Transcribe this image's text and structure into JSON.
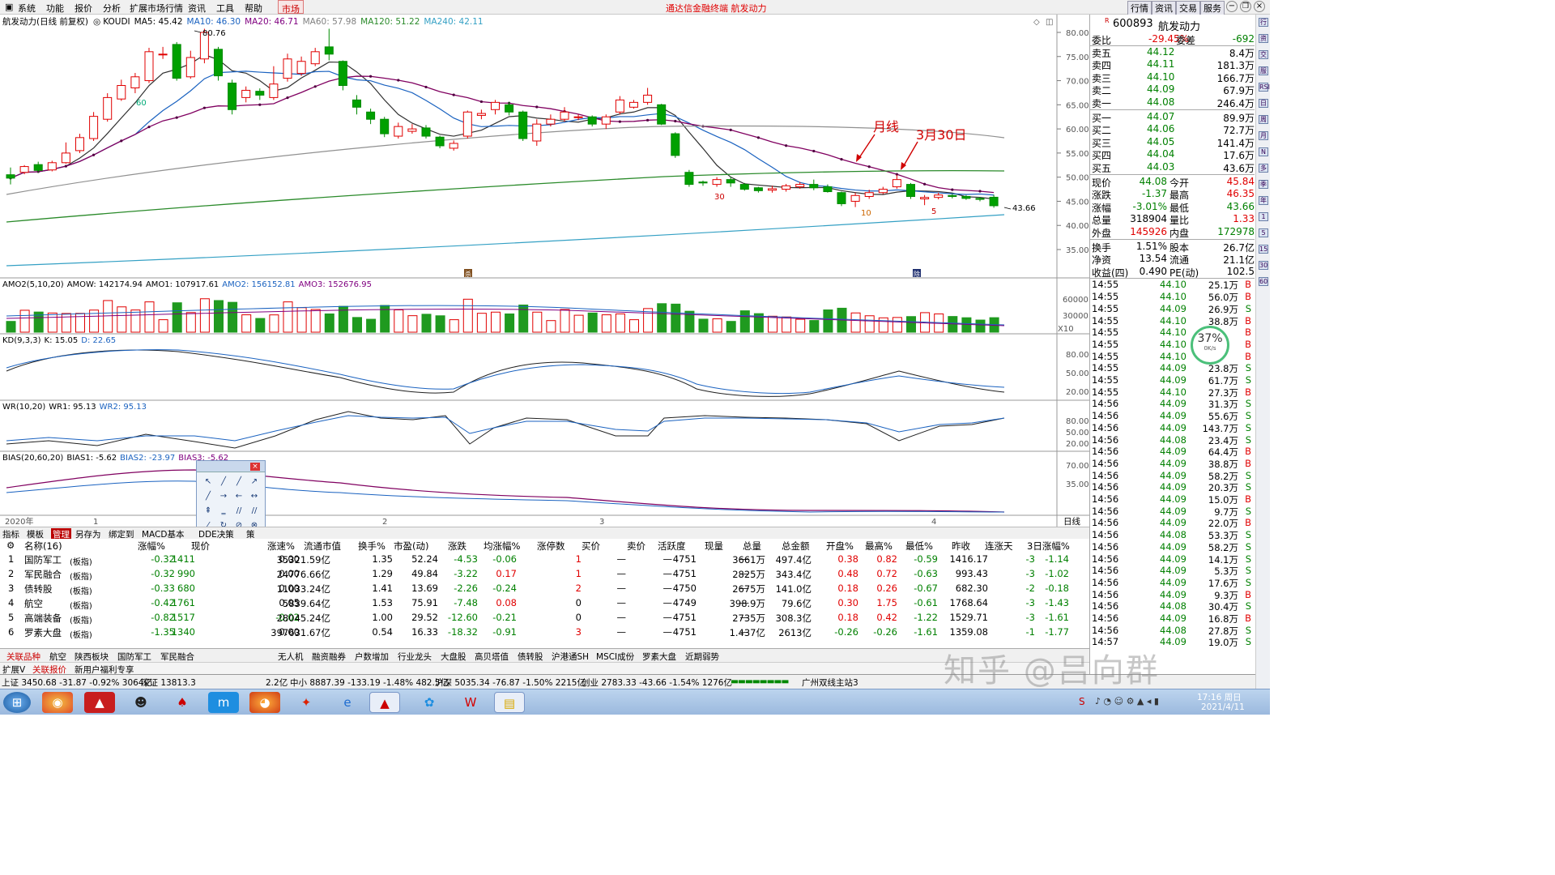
{
  "menu": {
    "items": [
      "系统",
      "功能",
      "报价",
      "分析",
      "扩展市场行情",
      "资讯",
      "工具",
      "帮助"
    ],
    "market": "市场",
    "title": "通达信金融终端  航发动力",
    "right": [
      "行情",
      "资讯",
      "交易",
      "服务"
    ]
  },
  "chart": {
    "title": "航发动力(日线 前复权)",
    "kline_label": "KOUDI",
    "ma5": "MA5: 45.42",
    "ma10": "MA10: 46.30",
    "ma20": "MA20: 46.71",
    "ma60": "MA60: 57.98",
    "ma120": "MA120: 51.22",
    "ma240": "MA240: 42.11",
    "high_mark": "80.76",
    "low_mark": "43.66",
    "ann1": "月线",
    "ann2": "3月30日",
    "yticks": [
      "80.00",
      "75.00",
      "70.00",
      "65.00",
      "60.00",
      "55.00",
      "50.00",
      "45.00",
      "40.00",
      "35.00"
    ],
    "m60": "60",
    "m30": "30",
    "m10": "10",
    "m5": "5",
    "t1": "杀",
    "t2": "除",
    "amo": {
      "label": "AMO2(5,10,20)",
      "amow": "AMOW: 142174.94",
      "amo1": "AMO1: 107917.61",
      "amo2": "AMO2: 156152.81",
      "amo3": "AMO3: 152676.95",
      "y1": "60000",
      "y2": "30000",
      "scale": "X10"
    },
    "kd": {
      "label": "KD(9,3,3)",
      "k": "K: 15.05",
      "d": "D: 22.65",
      "y": [
        "80.00",
        "50.00",
        "20.00"
      ]
    },
    "wr": {
      "label": "WR(10,20)",
      "wr1": "WR1: 95.13",
      "wr2": "WR2: 95.13",
      "y": [
        "80.00",
        "50.00",
        "20.00"
      ]
    },
    "bias": {
      "label": "BIAS(20,60,20)",
      "b1": "BIAS1: -5.62",
      "b2": "BIAS2: -23.97",
      "b3": "BIAS3: -5.62",
      "y": [
        "70.00",
        "35.00"
      ]
    },
    "xaxis": {
      "year": "2020年",
      "m1": "1",
      "m2": "2",
      "m3": "3",
      "m4": "4",
      "period": "日线"
    }
  },
  "quote": {
    "code": "600893",
    "name": "航发动力",
    "weibi_l": "委比",
    "weibi_v": "-29.45%",
    "weicha_l": "委差",
    "weicha_v": "-692",
    "asks": [
      [
        "卖五",
        "44.12",
        "8.4万"
      ],
      [
        "卖四",
        "44.11",
        "181.3万"
      ],
      [
        "卖三",
        "44.10",
        "166.7万"
      ],
      [
        "卖二",
        "44.09",
        "67.9万"
      ],
      [
        "卖一",
        "44.08",
        "246.4万"
      ]
    ],
    "bids": [
      [
        "买一",
        "44.07",
        "89.9万"
      ],
      [
        "买二",
        "44.06",
        "72.7万"
      ],
      [
        "买三",
        "44.05",
        "141.4万"
      ],
      [
        "买四",
        "44.04",
        "17.6万"
      ],
      [
        "买五",
        "44.03",
        "43.6万"
      ]
    ],
    "stats": [
      [
        "现价",
        "44.08",
        "今开",
        "45.84"
      ],
      [
        "涨跌",
        "-1.37",
        "最高",
        "46.35"
      ],
      [
        "涨幅",
        "-3.01%",
        "最低",
        "43.66"
      ],
      [
        "总量",
        "318904",
        "量比",
        "1.33"
      ],
      [
        "外盘",
        "145926",
        "内盘",
        "172978"
      ],
      [
        "换手",
        "1.51%",
        "股本",
        "26.7亿"
      ],
      [
        "净资",
        "13.54",
        "流通",
        "21.1亿"
      ],
      [
        "收益(四)",
        "0.490",
        "PE(动)",
        "102.5"
      ]
    ],
    "ticks": [
      [
        "14:55",
        "44.10",
        "25.1万",
        "B"
      ],
      [
        "14:55",
        "44.10",
        "56.0万",
        "B"
      ],
      [
        "14:55",
        "44.09",
        "26.9万",
        "S"
      ],
      [
        "14:55",
        "44.10",
        "38.8万",
        "B"
      ],
      [
        "14:55",
        "44.10",
        "",
        "B"
      ],
      [
        "14:55",
        "44.10",
        "",
        "B"
      ],
      [
        "14:55",
        "44.10",
        "",
        "B"
      ],
      [
        "14:55",
        "44.09",
        "23.8万",
        "S"
      ],
      [
        "14:55",
        "44.09",
        "61.7万",
        "S"
      ],
      [
        "14:55",
        "44.10",
        "27.3万",
        "B"
      ],
      [
        "14:56",
        "44.09",
        "31.3万",
        "S"
      ],
      [
        "14:56",
        "44.09",
        "55.6万",
        "S"
      ],
      [
        "14:56",
        "44.09",
        "143.7万",
        "S"
      ],
      [
        "14:56",
        "44.08",
        "23.4万",
        "S"
      ],
      [
        "14:56",
        "44.09",
        "64.4万",
        "B"
      ],
      [
        "14:56",
        "44.09",
        "38.8万",
        "B"
      ],
      [
        "14:56",
        "44.09",
        "58.2万",
        "S"
      ],
      [
        "14:56",
        "44.09",
        "20.3万",
        "S"
      ],
      [
        "14:56",
        "44.09",
        "15.0万",
        "B"
      ],
      [
        "14:56",
        "44.09",
        "9.7万",
        "S"
      ],
      [
        "14:56",
        "44.09",
        "22.0万",
        "B"
      ],
      [
        "14:56",
        "44.08",
        "53.3万",
        "S"
      ],
      [
        "14:56",
        "44.09",
        "58.2万",
        "S"
      ],
      [
        "14:56",
        "44.09",
        "14.1万",
        "S"
      ],
      [
        "14:56",
        "44.09",
        "5.3万",
        "S"
      ],
      [
        "14:56",
        "44.09",
        "17.6万",
        "S"
      ],
      [
        "14:56",
        "44.09",
        "9.3万",
        "B"
      ],
      [
        "14:56",
        "44.08",
        "30.4万",
        "S"
      ],
      [
        "14:56",
        "44.09",
        "16.8万",
        "B"
      ],
      [
        "14:56",
        "44.08",
        "27.8万",
        "S"
      ],
      [
        "14:57",
        "44.09",
        "19.0万",
        "S"
      ]
    ],
    "gauge_pct": "37%",
    "gauge_speed": "0K/s"
  },
  "rightbar": [
    "行",
    "资",
    "交",
    "服",
    "RSI",
    "日",
    "周",
    "月",
    "N",
    "多",
    "季",
    "年",
    "1",
    "5",
    "15",
    "30",
    "60"
  ],
  "tabs1": [
    "指标",
    "模板",
    "管理",
    "另存为",
    "绑定到",
    "MACD基本",
    "DDE决策",
    "策"
  ],
  "table": {
    "headers": [
      "名称(16)",
      "涨幅%",
      "现价",
      "涨速%",
      "流通市值",
      "换手%",
      "市盈(动)",
      "涨跌",
      "均涨幅%",
      "涨停数",
      "买价",
      "卖价",
      "活跃度",
      "现量",
      "总量",
      "总金额",
      "开盘%",
      "最高%",
      "最低%",
      "昨收",
      "连涨天",
      "3日涨幅%"
    ],
    "rows": [
      [
        "1",
        "国防军工",
        "(板指)",
        "-0.32",
        "1411",
        "0.00",
        "35321.59亿",
        "1.35",
        "52.24",
        "-4.53",
        "-0.06",
        "1",
        "—",
        "—",
        "4751",
        "—",
        "3661万",
        "497.4亿",
        "0.38",
        "0.82",
        "-0.59",
        "1416.17",
        "-3",
        "-1.14"
      ],
      [
        "2",
        "军民融合",
        "(板指)",
        "-0.32",
        "990",
        "0.00",
        "24776.66亿",
        "1.29",
        "49.84",
        "-3.22",
        "0.17",
        "1",
        "—",
        "—",
        "4751",
        "—",
        "2825万",
        "343.4亿",
        "0.48",
        "0.72",
        "-0.63",
        "993.43",
        "-3",
        "-1.02"
      ],
      [
        "3",
        "债转股",
        "(板指)",
        "-0.33",
        "680",
        "0.00",
        "11033.24亿",
        "1.41",
        "13.69",
        "-2.26",
        "-0.24",
        "2",
        "—",
        "—",
        "4750",
        "—",
        "2675万",
        "141.0亿",
        "0.18",
        "0.26",
        "-0.67",
        "682.30",
        "-2",
        "-0.18"
      ],
      [
        "4",
        "航空",
        "(板指)",
        "-0.42",
        "1761",
        "0.05",
        "5839.64亿",
        "1.53",
        "75.91",
        "-7.48",
        "0.08",
        "0",
        "—",
        "—",
        "4749",
        "—",
        "398.9万",
        "79.6亿",
        "0.30",
        "1.75",
        "-0.61",
        "1768.64",
        "-3",
        "-1.43"
      ],
      [
        "5",
        "高端装备",
        "(板指)",
        "-0.82",
        "1517",
        "-0.02",
        "28045.24亿",
        "1.00",
        "29.52",
        "-12.60",
        "-0.21",
        "0",
        "—",
        "—",
        "4751",
        "—",
        "2735万",
        "308.3亿",
        "0.18",
        "0.42",
        "-1.22",
        "1529.71",
        "-3",
        "-1.61"
      ],
      [
        "6",
        "罗素大盘",
        "(板指)",
        "-1.35",
        "1340",
        "0.00",
        "397631.67亿",
        "0.54",
        "16.33",
        "-18.32",
        "-0.91",
        "3",
        "—",
        "—",
        "4751",
        "—",
        "1.437亿",
        "2613亿",
        "-0.26",
        "-0.26",
        "-1.61",
        "1359.08",
        "-1",
        "-1.77"
      ]
    ]
  },
  "tabs2": [
    "关联品种",
    "航空",
    "陕西板块",
    "国防军工",
    "军民融合",
    "无人机",
    "融资融券",
    "户数增加",
    "行业龙头",
    "大盘股",
    "高贝塔值",
    "债转股",
    "沪港通SH",
    "MSCI成份",
    "罗素大盘",
    "近期弱势"
  ],
  "tabs3": [
    "扩展V",
    "关联报价",
    "新用户福利专享"
  ],
  "status": {
    "sh": "上证 3450.68 -31.87 -0.92% 3064亿",
    "sz": "深证 13813.3",
    "zx": "2.2亿",
    "zxb": "中小 8887.39 -133.19 -1.48% 482.5亿",
    "hs": "沪深 5035.34 -76.87 -1.50% 2215亿",
    "cy": "创业 2783.33 -43.66 -1.54% 1276亿",
    "site": "广州双线主站3"
  },
  "taskbar": {
    "time": "17:16 周日",
    "date": "2021/4/11"
  },
  "watermark": "知乎 @吕向群"
}
